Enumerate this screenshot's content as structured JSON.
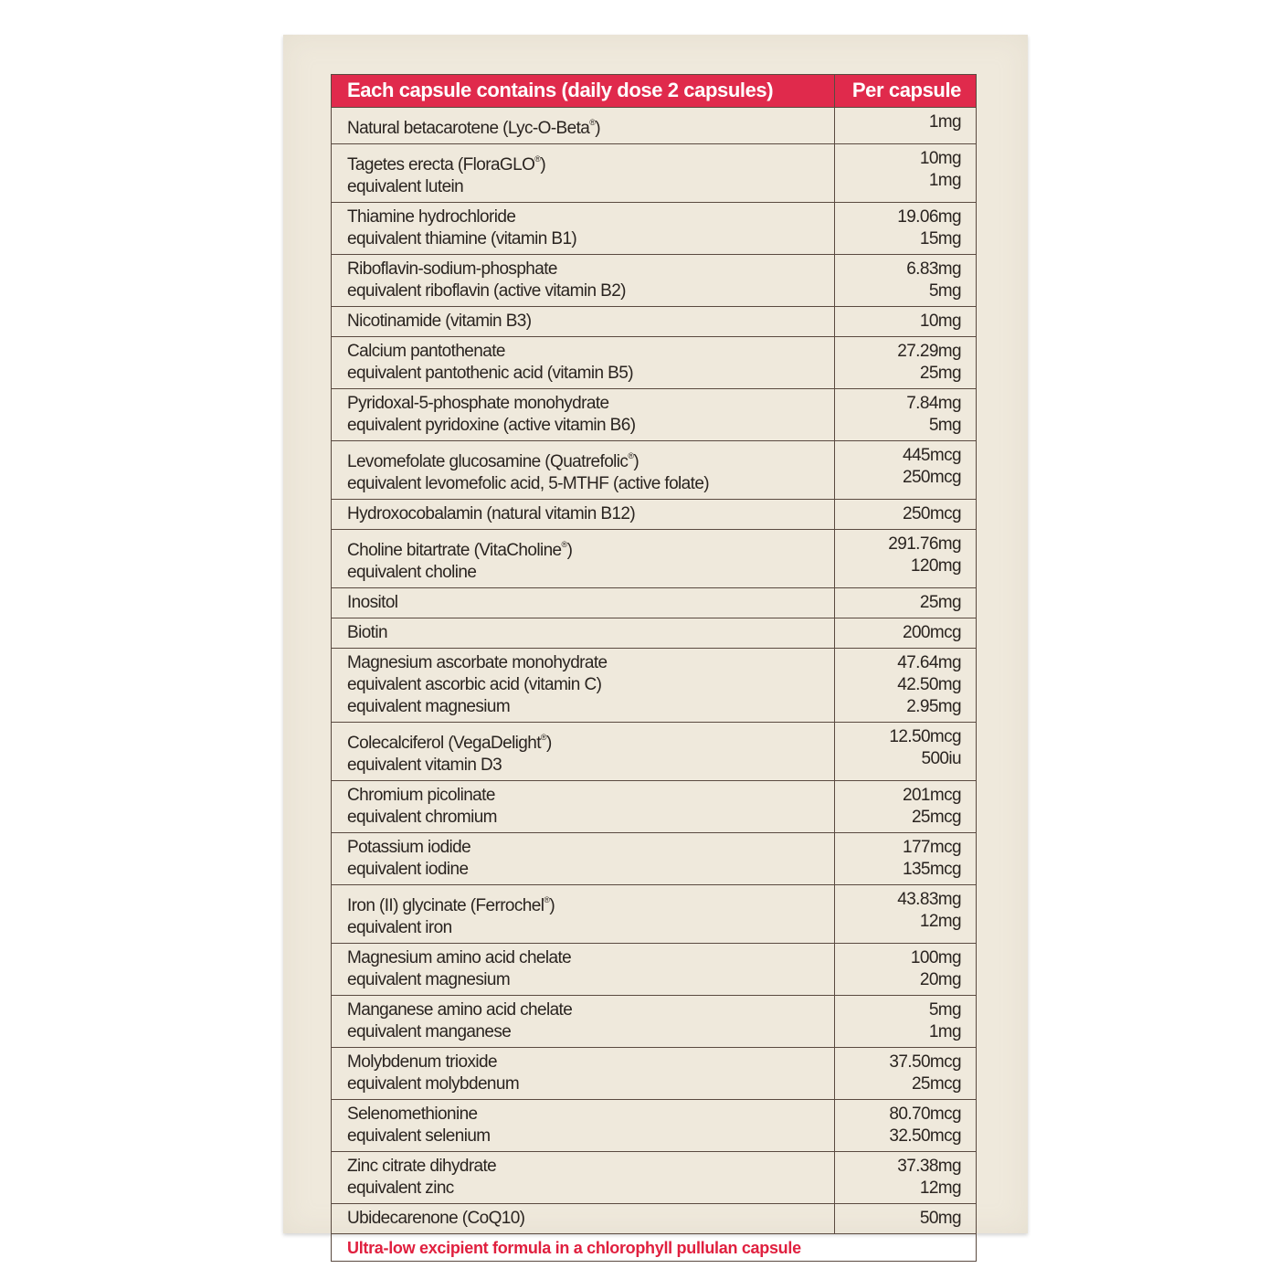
{
  "table": {
    "header": {
      "ingredient": "Each capsule contains (daily dose 2 capsules)",
      "amount": "Per capsule"
    },
    "rows": [
      {
        "names": [
          "Natural betacarotene (Lyc-O-Beta®)"
        ],
        "values": [
          "1mg"
        ]
      },
      {
        "names": [
          "Tagetes erecta (FloraGLO®)",
          "equivalent lutein"
        ],
        "values": [
          "10mg",
          "1mg"
        ]
      },
      {
        "names": [
          "Thiamine hydrochloride",
          "equivalent thiamine (vitamin B1)"
        ],
        "values": [
          "19.06mg",
          "15mg"
        ]
      },
      {
        "names": [
          "Riboflavin-sodium-phosphate",
          "equivalent riboflavin (active vitamin B2)"
        ],
        "values": [
          "6.83mg",
          "5mg"
        ]
      },
      {
        "names": [
          "Nicotinamide (vitamin B3)"
        ],
        "values": [
          "10mg"
        ]
      },
      {
        "names": [
          "Calcium pantothenate",
          "equivalent pantothenic acid (vitamin B5)"
        ],
        "values": [
          "27.29mg",
          "25mg"
        ]
      },
      {
        "names": [
          "Pyridoxal-5-phosphate monohydrate",
          "equivalent pyridoxine (active vitamin B6)"
        ],
        "values": [
          "7.84mg",
          "5mg"
        ]
      },
      {
        "names": [
          "Levomefolate glucosamine (Quatrefolic®)",
          "equivalent levomefolic acid, 5-MTHF (active folate)"
        ],
        "values": [
          "445mcg",
          "250mcg"
        ]
      },
      {
        "names": [
          "Hydroxocobalamin (natural vitamin B12)"
        ],
        "values": [
          "250mcg"
        ]
      },
      {
        "names": [
          "Choline bitartrate (VitaCholine®)",
          "equivalent choline"
        ],
        "values": [
          "291.76mg",
          "120mg"
        ]
      },
      {
        "names": [
          "Inositol"
        ],
        "values": [
          "25mg"
        ]
      },
      {
        "names": [
          "Biotin"
        ],
        "values": [
          "200mcg"
        ]
      },
      {
        "names": [
          "Magnesium ascorbate monohydrate",
          "equivalent ascorbic acid (vitamin C)",
          "equivalent magnesium"
        ],
        "values": [
          "47.64mg",
          "42.50mg",
          "2.95mg"
        ]
      },
      {
        "names": [
          "Colecalciferol (VegaDelight®)",
          "equivalent vitamin D3"
        ],
        "values": [
          "12.50mcg",
          "500iu"
        ]
      },
      {
        "names": [
          "Chromium picolinate",
          "equivalent chromium"
        ],
        "values": [
          "201mcg",
          "25mcg"
        ]
      },
      {
        "names": [
          "Potassium iodide",
          "equivalent iodine"
        ],
        "values": [
          "177mcg",
          "135mcg"
        ]
      },
      {
        "names": [
          "Iron (II) glycinate (Ferrochel®)",
          "equivalent iron"
        ],
        "values": [
          "43.83mg",
          "12mg"
        ]
      },
      {
        "names": [
          "Magnesium amino acid chelate",
          "equivalent magnesium"
        ],
        "values": [
          "100mg",
          "20mg"
        ]
      },
      {
        "names": [
          "Manganese amino acid chelate",
          "equivalent manganese"
        ],
        "values": [
          "5mg",
          "1mg"
        ]
      },
      {
        "names": [
          "Molybdenum trioxide",
          "equivalent molybdenum"
        ],
        "values": [
          "37.50mcg",
          "25mcg"
        ]
      },
      {
        "names": [
          "Selenomethionine",
          "equivalent selenium"
        ],
        "values": [
          "80.70mcg",
          "32.50mcg"
        ]
      },
      {
        "names": [
          "Zinc citrate dihydrate",
          "equivalent zinc"
        ],
        "values": [
          "37.38mg",
          "12mg"
        ]
      },
      {
        "names": [
          "Ubidecarenone (CoQ10)"
        ],
        "values": [
          "50mg"
        ]
      }
    ],
    "footer": "Ultra-low excipient formula in a chlorophyll pullulan capsule"
  },
  "colors": {
    "header_bg": "#e02a4c",
    "footer_text": "#e0203f",
    "package_bg": "#efe9dc"
  }
}
